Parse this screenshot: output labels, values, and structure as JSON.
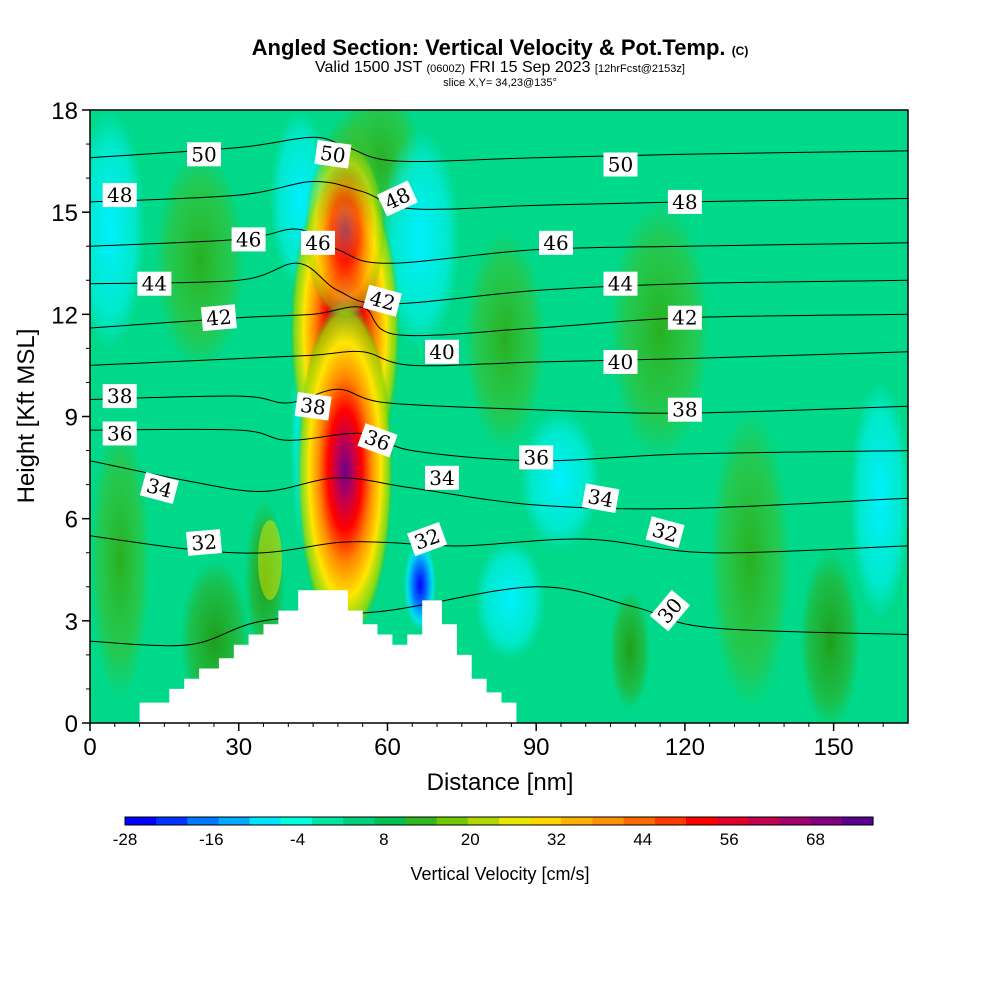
{
  "chart_data": {
    "type": "heatmap",
    "title": "Angled Section: Vertical Velocity & Pot.Temp.",
    "title_units": "(C)",
    "subtitle_valid": "Valid 1500 JST",
    "subtitle_zulu": "(0600Z)",
    "subtitle_date": "FRI 15 Sep 2023",
    "subtitle_fcst": "[12hrFcst@2153z]",
    "slice_label": "slice X,Y= 34,23@135°",
    "xlabel": "Distance [nm]",
    "ylabel": "Height [Kft MSL]",
    "xlim": [
      0,
      165
    ],
    "ylim": [
      0,
      18
    ],
    "xticks": [
      0,
      30,
      60,
      90,
      120,
      150
    ],
    "yticks": [
      0,
      3,
      6,
      9,
      12,
      15,
      18
    ],
    "colorbar": {
      "label": "Vertical Velocity [cm/s]",
      "range": [
        -28,
        76
      ],
      "ticks": [
        -28,
        -16,
        -4,
        8,
        20,
        32,
        44,
        56,
        68
      ],
      "colors": [
        "#0000ff",
        "#0033ff",
        "#0078ff",
        "#00aaff",
        "#00e5ff",
        "#00ffdd",
        "#00e6a0",
        "#00d07a",
        "#00c050",
        "#30b820",
        "#70c800",
        "#b0d800",
        "#e6e600",
        "#ffd500",
        "#ffb000",
        "#ff9000",
        "#ff6a00",
        "#ff3a00",
        "#ff0000",
        "#e0002a",
        "#c00050",
        "#a00070",
        "#800080",
        "#5a0090"
      ]
    },
    "terrain_profile": [
      [
        0,
        0
      ],
      [
        10,
        0
      ],
      [
        10,
        0.6
      ],
      [
        16,
        0.6
      ],
      [
        16,
        1
      ],
      [
        19,
        1
      ],
      [
        19,
        1.3
      ],
      [
        22,
        1.3
      ],
      [
        22,
        1.6
      ],
      [
        26,
        1.6
      ],
      [
        26,
        1.9
      ],
      [
        29,
        1.9
      ],
      [
        29,
        2.3
      ],
      [
        32,
        2.3
      ],
      [
        32,
        2.6
      ],
      [
        35,
        2.6
      ],
      [
        35,
        2.9
      ],
      [
        38,
        2.9
      ],
      [
        38,
        3.3
      ],
      [
        42,
        3.3
      ],
      [
        42,
        3.9
      ],
      [
        52,
        3.9
      ],
      [
        52,
        3.3
      ],
      [
        55,
        3.3
      ],
      [
        55,
        2.9
      ],
      [
        58,
        2.9
      ],
      [
        58,
        2.6
      ],
      [
        61,
        2.6
      ],
      [
        61,
        2.3
      ],
      [
        64,
        2.3
      ],
      [
        64,
        2.6
      ],
      [
        67,
        2.6
      ],
      [
        67,
        3.6
      ],
      [
        71,
        3.6
      ],
      [
        71,
        2.9
      ],
      [
        74,
        2.9
      ],
      [
        74,
        2.0
      ],
      [
        77,
        2.0
      ],
      [
        77,
        1.3
      ],
      [
        80,
        1.3
      ],
      [
        80,
        0.9
      ],
      [
        83,
        0.9
      ],
      [
        83,
        0.6
      ],
      [
        86,
        0.6
      ],
      [
        86,
        0
      ],
      [
        165,
        0
      ]
    ],
    "updraft_core": {
      "x_center_nm": 51,
      "height_range_kft": [
        4,
        14
      ],
      "max_cm_s": 76
    },
    "downdraft_core": {
      "x_center_nm": 66,
      "height_range_kft": [
        3,
        5
      ],
      "min_cm_s": -28
    },
    "isentrope_levels": [
      30,
      32,
      34,
      36,
      38,
      40,
      42,
      44,
      46,
      48,
      50
    ],
    "isentropes": [
      {
        "theta": 50,
        "points": [
          [
            0,
            16.6
          ],
          [
            30,
            16.9
          ],
          [
            45,
            17.2
          ],
          [
            52,
            16.9
          ],
          [
            62,
            16.5
          ],
          [
            90,
            16.6
          ],
          [
            120,
            16.7
          ],
          [
            165,
            16.8
          ]
        ]
      },
      {
        "theta": 48,
        "points": [
          [
            0,
            15.3
          ],
          [
            30,
            15.5
          ],
          [
            45,
            15.9
          ],
          [
            55,
            15.6
          ],
          [
            65,
            15.1
          ],
          [
            90,
            15.2
          ],
          [
            120,
            15.3
          ],
          [
            165,
            15.4
          ]
        ]
      },
      {
        "theta": 46,
        "points": [
          [
            0,
            14.0
          ],
          [
            30,
            14.2
          ],
          [
            42,
            14.5
          ],
          [
            50,
            13.9
          ],
          [
            60,
            13.5
          ],
          [
            90,
            13.9
          ],
          [
            120,
            14.0
          ],
          [
            165,
            14.1
          ]
        ]
      },
      {
        "theta": 44,
        "points": [
          [
            0,
            12.9
          ],
          [
            30,
            13.0
          ],
          [
            42,
            13.5
          ],
          [
            50,
            12.7
          ],
          [
            60,
            12.3
          ],
          [
            90,
            12.7
          ],
          [
            120,
            12.9
          ],
          [
            165,
            13.0
          ]
        ]
      },
      {
        "theta": 42,
        "points": [
          [
            0,
            11.6
          ],
          [
            30,
            11.9
          ],
          [
            45,
            12.0
          ],
          [
            55,
            12.2
          ],
          [
            62,
            11.4
          ],
          [
            90,
            11.6
          ],
          [
            120,
            11.9
          ],
          [
            165,
            12.0
          ]
        ]
      },
      {
        "theta": 40,
        "points": [
          [
            0,
            10.5
          ],
          [
            30,
            10.7
          ],
          [
            45,
            10.8
          ],
          [
            55,
            10.9
          ],
          [
            65,
            10.5
          ],
          [
            90,
            10.6
          ],
          [
            120,
            10.7
          ],
          [
            165,
            10.9
          ]
        ]
      },
      {
        "theta": 38,
        "points": [
          [
            0,
            9.5
          ],
          [
            30,
            9.6
          ],
          [
            40,
            9.4
          ],
          [
            50,
            9.8
          ],
          [
            60,
            9.4
          ],
          [
            90,
            9.2
          ],
          [
            120,
            9.1
          ],
          [
            165,
            9.3
          ]
        ]
      },
      {
        "theta": 36,
        "points": [
          [
            0,
            8.6
          ],
          [
            30,
            8.6
          ],
          [
            40,
            8.3
          ],
          [
            55,
            8.5
          ],
          [
            65,
            8.0
          ],
          [
            90,
            7.7
          ],
          [
            120,
            7.9
          ],
          [
            165,
            8.0
          ]
        ]
      },
      {
        "theta": 34,
        "points": [
          [
            0,
            7.7
          ],
          [
            20,
            7.1
          ],
          [
            35,
            6.8
          ],
          [
            50,
            7.2
          ],
          [
            65,
            6.9
          ],
          [
            90,
            6.4
          ],
          [
            120,
            6.3
          ],
          [
            165,
            6.6
          ]
        ]
      },
      {
        "theta": 32,
        "points": [
          [
            0,
            5.5
          ],
          [
            20,
            5.1
          ],
          [
            35,
            5.0
          ],
          [
            50,
            5.3
          ],
          [
            60,
            5.3
          ],
          [
            75,
            5.2
          ],
          [
            100,
            5.4
          ],
          [
            125,
            5.0
          ],
          [
            165,
            5.2
          ]
        ]
      },
      {
        "theta": 30,
        "points": [
          [
            0,
            2.4
          ],
          [
            20,
            2.3
          ],
          [
            35,
            3.0
          ],
          [
            60,
            3.3
          ],
          [
            90,
            4.0
          ],
          [
            110,
            3.4
          ],
          [
            125,
            2.8
          ],
          [
            165,
            2.6
          ]
        ]
      }
    ],
    "contour_labels": [
      {
        "text": "50",
        "x": 23,
        "y": 16.7,
        "angle": 0
      },
      {
        "text": "50",
        "x": 49,
        "y": 16.7,
        "angle": 8
      },
      {
        "text": "50",
        "x": 107,
        "y": 16.4,
        "angle": 0
      },
      {
        "text": "48",
        "x": 6,
        "y": 15.5,
        "angle": 0
      },
      {
        "text": "48",
        "x": 62,
        "y": 15.4,
        "angle": -25
      },
      {
        "text": "48",
        "x": 120,
        "y": 15.3,
        "angle": 0
      },
      {
        "text": "46",
        "x": 32,
        "y": 14.2,
        "angle": 0
      },
      {
        "text": "46",
        "x": 46,
        "y": 14.1,
        "angle": 0
      },
      {
        "text": "46",
        "x": 94,
        "y": 14.1,
        "angle": 0
      },
      {
        "text": "44",
        "x": 13,
        "y": 12.9,
        "angle": 0
      },
      {
        "text": "44",
        "x": 107,
        "y": 12.9,
        "angle": 0
      },
      {
        "text": "42",
        "x": 26,
        "y": 11.9,
        "angle": -5
      },
      {
        "text": "42",
        "x": 59,
        "y": 12.4,
        "angle": 15
      },
      {
        "text": "42",
        "x": 120,
        "y": 11.9,
        "angle": 0
      },
      {
        "text": "40",
        "x": 71,
        "y": 10.9,
        "angle": 0
      },
      {
        "text": "40",
        "x": 107,
        "y": 10.6,
        "angle": 0
      },
      {
        "text": "38",
        "x": 6,
        "y": 9.6,
        "angle": 0
      },
      {
        "text": "38",
        "x": 45,
        "y": 9.3,
        "angle": 8
      },
      {
        "text": "38",
        "x": 120,
        "y": 9.2,
        "angle": 0
      },
      {
        "text": "36",
        "x": 6,
        "y": 8.5,
        "angle": 0
      },
      {
        "text": "36",
        "x": 58,
        "y": 8.3,
        "angle": 20
      },
      {
        "text": "36",
        "x": 90,
        "y": 7.8,
        "angle": 0
      },
      {
        "text": "34",
        "x": 14,
        "y": 6.9,
        "angle": 15
      },
      {
        "text": "34",
        "x": 71,
        "y": 7.2,
        "angle": 0
      },
      {
        "text": "34",
        "x": 103,
        "y": 6.6,
        "angle": 10
      },
      {
        "text": "32",
        "x": 23,
        "y": 5.3,
        "angle": -5
      },
      {
        "text": "32",
        "x": 68,
        "y": 5.4,
        "angle": -20
      },
      {
        "text": "32",
        "x": 116,
        "y": 5.6,
        "angle": 15
      },
      {
        "text": "30",
        "x": 117,
        "y": 3.3,
        "angle": -50
      }
    ]
  }
}
